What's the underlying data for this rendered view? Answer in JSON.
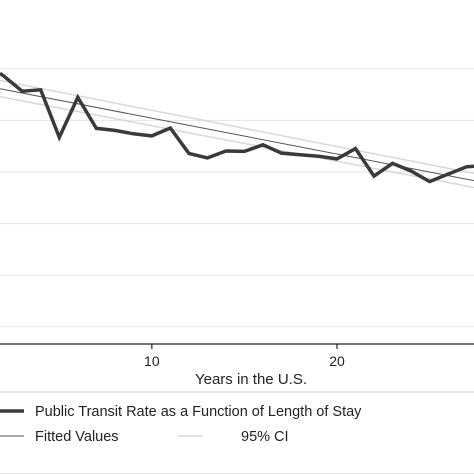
{
  "chart_data": {
    "type": "line",
    "title": "",
    "xlabel": "Years in the U.S.",
    "ylabel": "",
    "xlim": [
      1.8,
      27.4
    ],
    "ylim": [
      0,
      1
    ],
    "x_ticks": [
      10,
      20
    ],
    "grid": true,
    "legend_position": "bottom",
    "colors": {
      "series": "#3a3a3a",
      "fit": "#555555",
      "ci": "#d8d8d8",
      "grid": "#e6e6e6",
      "plot_bg": "#ffffff",
      "outer_bg": "#ffffff"
    },
    "series": [
      {
        "name": "Public Transit Rate as a Function of Length of Stay",
        "x": [
          1.8,
          2,
          3,
          4,
          5,
          6,
          7,
          8,
          9,
          10,
          11,
          12,
          13,
          14,
          15,
          16,
          17,
          18,
          19,
          20,
          21,
          22,
          23,
          24,
          25,
          26,
          27,
          27.4
        ],
        "values": [
          0.787,
          0.779,
          0.735,
          0.739,
          0.601,
          0.717,
          0.627,
          0.621,
          0.611,
          0.605,
          0.628,
          0.554,
          0.541,
          0.561,
          0.56,
          0.579,
          0.555,
          0.55,
          0.546,
          0.538,
          0.568,
          0.488,
          0.525,
          0.503,
          0.472,
          0.494,
          0.515,
          0.517
        ]
      },
      {
        "name": "Fitted Values",
        "x": [
          1.8,
          27.4
        ],
        "values": [
          0.742,
          0.475
        ]
      },
      {
        "name": "95% CI",
        "upper": {
          "x": [
            1.8,
            27.4
          ],
          "values": [
            0.766,
            0.496
          ]
        },
        "lower": {
          "x": [
            1.8,
            27.4
          ],
          "values": [
            0.719,
            0.455
          ]
        }
      }
    ]
  }
}
